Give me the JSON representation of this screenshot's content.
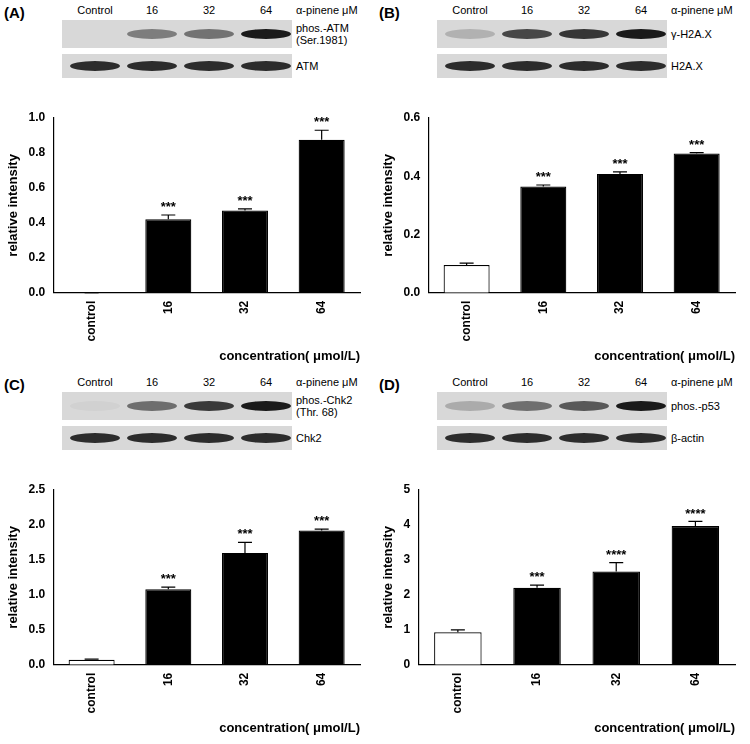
{
  "chart_data": [
    {
      "type": "bar",
      "panel": "(A)",
      "blot": {
        "lanes": [
          "Control",
          "16",
          "32",
          "64"
        ],
        "treatment": "α-pinene μM",
        "rows": [
          [
            "phos.-ATM",
            "(Ser.1981)"
          ],
          [
            "ATM"
          ]
        ]
      },
      "categories": [
        "control",
        "16",
        "32",
        "64"
      ],
      "values": [
        0,
        0.42,
        0.47,
        0.875
      ],
      "errors": [
        0,
        0.025,
        0.01,
        0.055
      ],
      "significance": [
        null,
        "***",
        "***",
        "***"
      ],
      "colors": [
        "#ffffff",
        "#000000",
        "#000000",
        "#000000"
      ],
      "x_label": "concentration( μmol/L)",
      "y_label": "relative intensity",
      "ylim": [
        0,
        1.0
      ],
      "yticks": [
        {
          "value": 0,
          "label": "0.0"
        },
        {
          "value": 0.2,
          "label": "0.2"
        },
        {
          "value": 0.4,
          "label": "0.4"
        },
        {
          "value": 0.6,
          "label": "0.6"
        },
        {
          "value": 0.8,
          "label": "0.8"
        },
        {
          "value": 1.0,
          "label": "1.0"
        }
      ],
      "grid": false
    },
    {
      "type": "bar",
      "panel": "(B)",
      "blot": {
        "lanes": [
          "Control",
          "16",
          "32",
          "64"
        ],
        "treatment": "α-pinene μM",
        "rows": [
          [
            "γ-H2A.X"
          ],
          [
            "H2A.X"
          ]
        ]
      },
      "categories": [
        "control",
        "16",
        "32",
        "64"
      ],
      "values": [
        0.095,
        0.365,
        0.408,
        0.478
      ],
      "errors": [
        0.007,
        0.005,
        0.007,
        0.003
      ],
      "significance": [
        null,
        "***",
        "***",
        "***"
      ],
      "colors": [
        "#ffffff",
        "#000000",
        "#000000",
        "#000000"
      ],
      "x_label": "concentration( μmol/L)",
      "y_label": "relative intensity",
      "ylim": [
        0,
        0.6
      ],
      "yticks": [
        {
          "value": 0,
          "label": "0.0"
        },
        {
          "value": 0.2,
          "label": "0.2"
        },
        {
          "value": 0.4,
          "label": "0.4"
        },
        {
          "value": 0.6,
          "label": "0.6"
        }
      ],
      "grid": false
    },
    {
      "type": "bar",
      "panel": "(C)",
      "blot": {
        "lanes": [
          "Control",
          "16",
          "32",
          "64"
        ],
        "treatment": "α-pinene μM",
        "rows": [
          [
            "phos.-Chk2",
            "(Thr. 68)"
          ],
          [
            "Chk2"
          ]
        ]
      },
      "categories": [
        "control",
        "16",
        "32",
        "64"
      ],
      "values": [
        0.07,
        1.08,
        1.6,
        1.92
      ],
      "errors": [
        0.01,
        0.03,
        0.15,
        0.02
      ],
      "significance": [
        null,
        "***",
        "***",
        "***"
      ],
      "colors": [
        "#ffffff",
        "#000000",
        "#000000",
        "#000000"
      ],
      "x_label": "concentration( μmol/L)",
      "y_label": "relative intensity",
      "ylim": [
        0,
        2.5
      ],
      "yticks": [
        {
          "value": 0,
          "label": "0.0"
        },
        {
          "value": 0.5,
          "label": "0.5"
        },
        {
          "value": 1.0,
          "label": "1.0"
        },
        {
          "value": 1.5,
          "label": "1.5"
        },
        {
          "value": 2.0,
          "label": "2.0"
        },
        {
          "value": 2.5,
          "label": "2.5"
        }
      ],
      "grid": false
    },
    {
      "type": "bar",
      "panel": "(D)",
      "blot": {
        "lanes": [
          "Control",
          "16",
          "32",
          "64"
        ],
        "treatment": "α-pinene μM",
        "rows": [
          [
            "phos.-p53"
          ],
          [
            "β-actin"
          ]
        ]
      },
      "categories": [
        "control",
        "16",
        "32",
        "64"
      ],
      "values": [
        0.93,
        2.2,
        2.67,
        3.97
      ],
      "errors": [
        0.07,
        0.08,
        0.25,
        0.13
      ],
      "significance": [
        null,
        "***",
        "****",
        "****"
      ],
      "colors": [
        "#ffffff",
        "#000000",
        "#000000",
        "#000000"
      ],
      "x_label": "concentration( μmol/L)",
      "y_label": "relative intensity",
      "ylim": [
        0,
        5
      ],
      "yticks": [
        0,
        1,
        2,
        3,
        4,
        5
      ],
      "grid": false
    }
  ]
}
